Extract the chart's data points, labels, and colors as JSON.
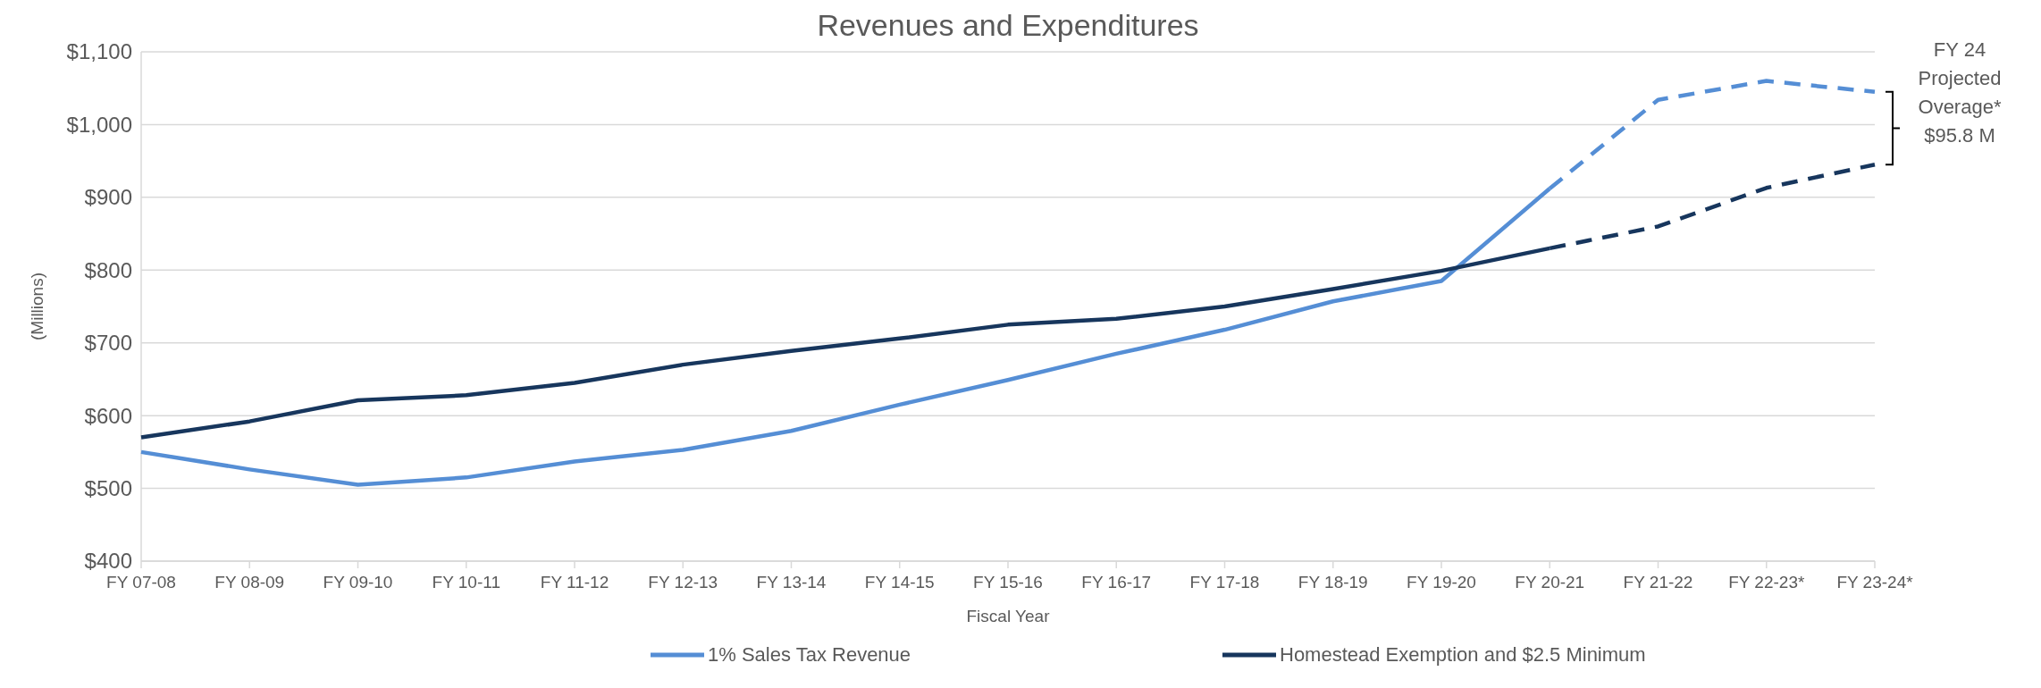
{
  "chart_data": {
    "type": "line",
    "title": "Revenues and Expenditures",
    "xlabel": "Fiscal Year",
    "ylabel": "(Millions)",
    "categories": [
      "FY 07-08",
      "FY 08-09",
      "FY 09-10",
      "FY 10-11",
      "FY 11-12",
      "FY 12-13",
      "FY 13-14",
      "FY 14-15",
      "FY 15-16",
      "FY 16-17",
      "FY 17-18",
      "FY 18-19",
      "FY 19-20",
      "FY 20-21",
      "FY 21-22",
      "FY 22-23*",
      "FY 23-24*"
    ],
    "series": [
      {
        "name": "1% Sales Tax Revenue",
        "color": "#558ed5",
        "line_style": "solid",
        "values": [
          550,
          526,
          505,
          515,
          537,
          553,
          579,
          615,
          649,
          685,
          718,
          757,
          785,
          912,
          null,
          null,
          null
        ]
      },
      {
        "name": "Homestead Exemption and $2.5 Minimum",
        "color": "#17365d",
        "line_style": "solid",
        "values": [
          570,
          592,
          621,
          628,
          645,
          670,
          689,
          706,
          725,
          733,
          750,
          774,
          799,
          830,
          null,
          null,
          null
        ]
      },
      {
        "color": "#558ed5",
        "line_style": "dashed",
        "values": [
          null,
          null,
          null,
          null,
          null,
          null,
          null,
          null,
          null,
          null,
          null,
          null,
          null,
          912,
          1034,
          1060,
          1045
        ]
      },
      {
        "color": "#17365d",
        "line_style": "dashed",
        "values": [
          null,
          null,
          null,
          null,
          null,
          null,
          null,
          null,
          null,
          null,
          null,
          null,
          null,
          830,
          860,
          913,
          945
        ]
      }
    ],
    "ylim": [
      400,
      1100
    ],
    "yticks": [
      {
        "value": 400,
        "label": "$400"
      },
      {
        "value": 500,
        "label": "$500"
      },
      {
        "value": 600,
        "label": "$600"
      },
      {
        "value": 700,
        "label": "$700"
      },
      {
        "value": 800,
        "label": "$800"
      },
      {
        "value": 900,
        "label": "$900"
      },
      {
        "value": 1000,
        "label": "$1,000"
      },
      {
        "value": 1100,
        "label": "$1,100"
      }
    ],
    "grid": "y",
    "legend": "bottom",
    "annotations": [
      "FY 24\nProjected\nOverage*\n$95.8 M"
    ]
  }
}
